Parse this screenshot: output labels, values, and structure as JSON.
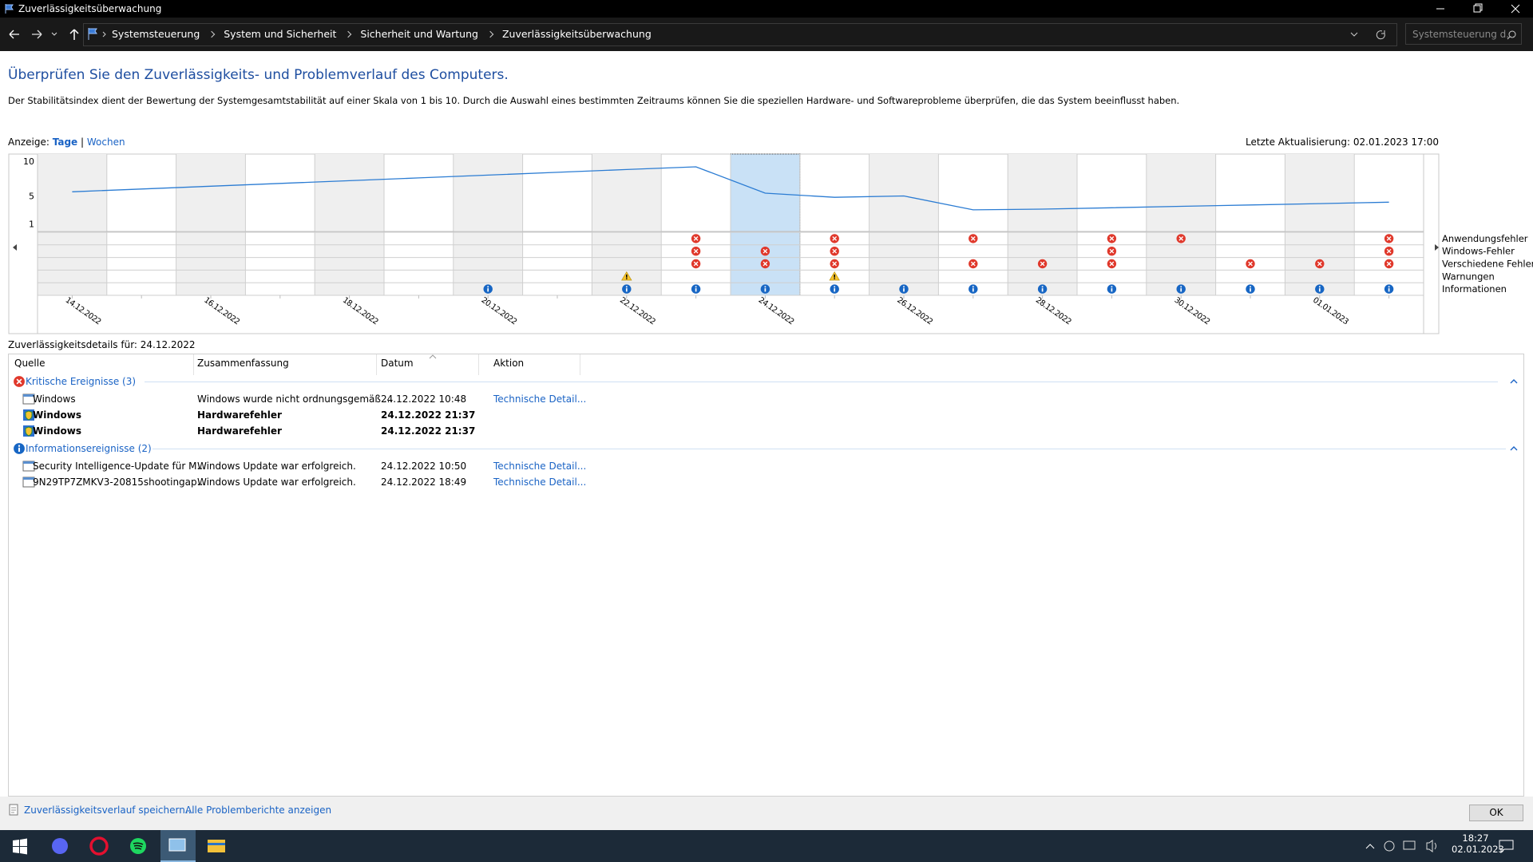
{
  "window": {
    "title": "Zuverlässigkeitsüberwachung"
  },
  "address_bar": {
    "breadcrumb": [
      "Systemsteuerung",
      "System und Sicherheit",
      "Sicherheit und Wartung",
      "Zuverlässigkeitsüberwachung"
    ],
    "search_placeholder": "Systemsteuerung d..."
  },
  "header": {
    "title": "Überprüfen Sie den Zuverlässigkeits- und Problemverlauf des Computers.",
    "description": "Der Stabilitätsindex dient der Bewertung der Systemgesamtstabilität auf einer Skala von 1 bis 10. Durch die Auswahl eines bestimmten Zeitraums können Sie die speziellen Hardware- und Softwareprobleme überprüfen, die das System beeinflusst haben."
  },
  "view": {
    "label": "Anzeige:",
    "options": [
      "Tage",
      "Wochen"
    ],
    "separator": "|",
    "last_update": "Letzte Aktualisierung: 02.01.2023 17:00"
  },
  "chart_data": {
    "type": "line",
    "categories": [
      "14.12.2022",
      null,
      "16.12.2022",
      null,
      "18.12.2022",
      null,
      "20.12.2022",
      null,
      "22.12.2022",
      null,
      "24.12.2022",
      null,
      "26.12.2022",
      null,
      "28.12.2022",
      null,
      "30.12.2022",
      null,
      "01.01.2023",
      null
    ],
    "values": [
      5.6,
      6.0,
      6.4,
      6.8,
      7.2,
      7.6,
      8.0,
      8.4,
      8.8,
      9.2,
      5.4,
      4.8,
      5.0,
      3.0,
      3.1,
      3.3,
      3.5,
      3.7,
      3.9,
      4.1
    ],
    "color": "#2b7cd3",
    "ylim": [
      0,
      10
    ],
    "yticks": [
      1,
      5,
      10
    ],
    "selected_category": "24.12.2022",
    "event_rows": [
      {
        "name": "Anwendungsfehler",
        "icon": "error",
        "values": [
          0,
          0,
          0,
          0,
          0,
          0,
          0,
          0,
          0,
          1,
          0,
          1,
          0,
          1,
          0,
          1,
          1,
          0,
          0,
          1
        ]
      },
      {
        "name": "Windows-Fehler",
        "icon": "error",
        "values": [
          0,
          0,
          0,
          0,
          0,
          0,
          0,
          0,
          0,
          1,
          1,
          1,
          0,
          0,
          0,
          1,
          0,
          0,
          0,
          1
        ]
      },
      {
        "name": "Verschiedene Fehler",
        "icon": "error",
        "values": [
          0,
          0,
          0,
          0,
          0,
          0,
          0,
          0,
          0,
          1,
          1,
          1,
          0,
          1,
          1,
          1,
          0,
          1,
          1,
          1
        ]
      },
      {
        "name": "Warnungen",
        "icon": "warning",
        "values": [
          0,
          0,
          0,
          0,
          0,
          0,
          0,
          0,
          1,
          0,
          0,
          1,
          0,
          0,
          0,
          0,
          0,
          0,
          0,
          0
        ]
      },
      {
        "name": "Informationen",
        "icon": "info",
        "values": [
          0,
          0,
          0,
          0,
          0,
          0,
          1,
          0,
          1,
          1,
          1,
          1,
          1,
          1,
          1,
          1,
          1,
          1,
          1,
          1
        ]
      }
    ]
  },
  "details": {
    "title": "Zuverlässigkeitsdetails für: 24.12.2022",
    "columns": [
      "Quelle",
      "Zusammenfassung",
      "Datum",
      "Aktion"
    ],
    "groups": [
      {
        "title": "Kritische Ereignisse (3)",
        "icon": "error",
        "rows": [
          {
            "cells": [
              "Windows",
              "Windows wurde nicht ordnungsgemäß ...",
              "24.12.2022 10:48",
              "Technische Detail..."
            ],
            "bold": false,
            "icon": "app"
          },
          {
            "cells": [
              "Windows",
              "Hardwarefehler",
              "24.12.2022 21:37",
              null
            ],
            "bold": true,
            "icon": "shield"
          },
          {
            "cells": [
              "Windows",
              "Hardwarefehler",
              "24.12.2022 21:37",
              null
            ],
            "bold": true,
            "icon": "shield"
          }
        ]
      },
      {
        "title": "Informationsereignisse (2)",
        "icon": "info",
        "rows": [
          {
            "cells": [
              "Security Intelligence-Update für M...",
              "Windows Update war erfolgreich.",
              "24.12.2022 10:50",
              "Technische Detail..."
            ],
            "bold": false,
            "icon": "app"
          },
          {
            "cells": [
              "9N29TP7ZMKV3-20815shootingap...",
              "Windows Update war erfolgreich.",
              "24.12.2022 18:49",
              "Technische Detail..."
            ],
            "bold": false,
            "icon": "app"
          }
        ]
      }
    ]
  },
  "footer": {
    "links": [
      "Zuverlässigkeitsverlauf speichern...",
      "Alle Problemberichte anzeigen"
    ],
    "ok": "OK"
  },
  "taskbar": {
    "time": "18:27",
    "date": "02.01.2023"
  }
}
